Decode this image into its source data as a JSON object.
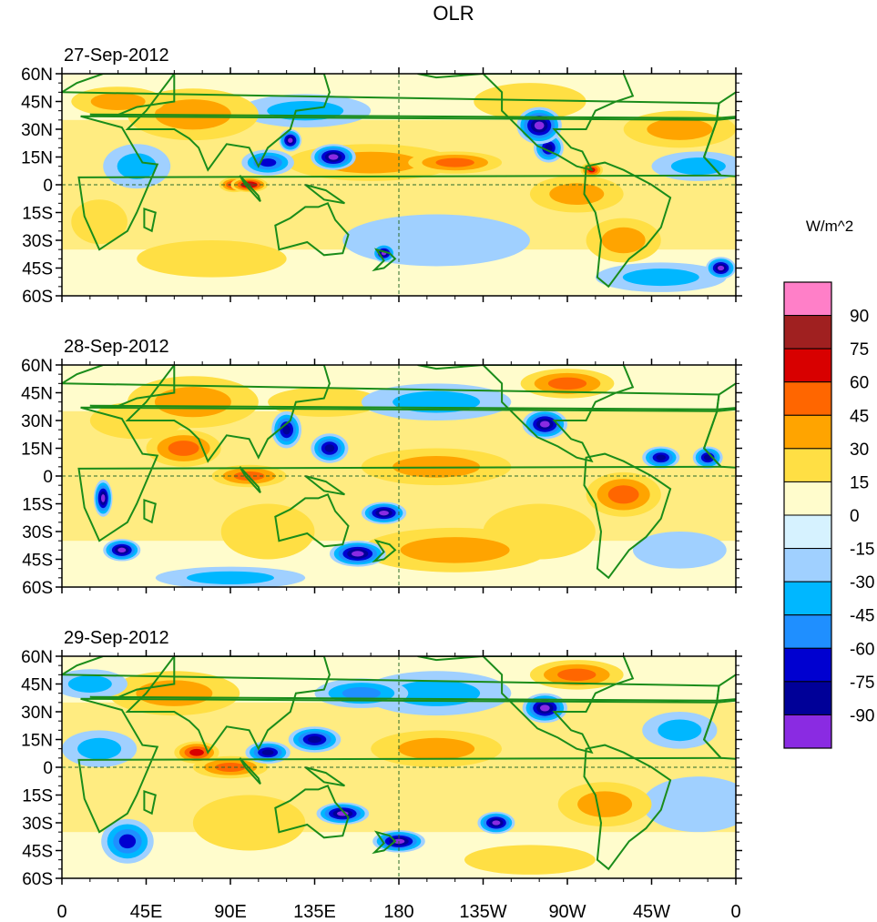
{
  "chart_data": {
    "type": "heatmap",
    "title": "OLR",
    "units_label": "W/m^2",
    "x_tick_labels": [
      "0",
      "45E",
      "90E",
      "135E",
      "180",
      "135W",
      "90W",
      "45W",
      "0"
    ],
    "x_ticks_deg": [
      0,
      45,
      90,
      135,
      180,
      225,
      270,
      315,
      360
    ],
    "y_tick_labels": [
      "60N",
      "45N",
      "30N",
      "15N",
      "0",
      "15S",
      "30S",
      "45S",
      "60S"
    ],
    "y_ticks_deg": [
      60,
      45,
      30,
      15,
      0,
      -15,
      -30,
      -45,
      -60
    ],
    "xlim": [
      0,
      360
    ],
    "ylim": [
      -60,
      60
    ],
    "colorbar": {
      "levels": [
        -90,
        -75,
        -60,
        -45,
        -30,
        -15,
        0,
        15,
        30,
        45,
        60,
        75,
        90
      ],
      "labels": [
        "90",
        "75",
        "60",
        "45",
        "30",
        "15",
        "0",
        "-15",
        "-30",
        "-45",
        "-60",
        "-75",
        "-90"
      ],
      "colors": [
        "#8a2be2",
        "#000098",
        "#0000d0",
        "#1f8fff",
        "#00b7ff",
        "#a0d0ff",
        "#d6f2ff",
        "#fffccc",
        "#ffdf44",
        "#ffa400",
        "#ff6600",
        "#d80000",
        "#a02020",
        "#ff7fc8"
      ]
    },
    "panels": [
      {
        "date": "27-Sep-2012",
        "features": [
          {
            "lon": 255,
            "lat": 32,
            "w": 12,
            "h": 10,
            "v": -90
          },
          {
            "lon": 260,
            "lat": 20,
            "w": 8,
            "h": 8,
            "v": -75
          },
          {
            "lon": 145,
            "lat": 15,
            "w": 12,
            "h": 7,
            "v": -90
          },
          {
            "lon": 122,
            "lat": 24,
            "w": 6,
            "h": 6,
            "v": -90
          },
          {
            "lon": 110,
            "lat": 12,
            "w": 14,
            "h": 7,
            "v": -60
          },
          {
            "lon": 100,
            "lat": 0,
            "w": 10,
            "h": 4,
            "v": 75
          },
          {
            "lon": 92,
            "lat": 0,
            "w": 8,
            "h": 4,
            "v": 60
          },
          {
            "lon": 283,
            "lat": 8,
            "w": 6,
            "h": 4,
            "v": 60
          },
          {
            "lon": 172,
            "lat": -37,
            "w": 6,
            "h": 5,
            "v": -90
          },
          {
            "lon": 352,
            "lat": -45,
            "w": 8,
            "h": 6,
            "v": -90
          },
          {
            "lon": 130,
            "lat": 40,
            "w": 35,
            "h": 9,
            "v": -30
          },
          {
            "lon": 70,
            "lat": 38,
            "w": 35,
            "h": 14,
            "v": 30
          },
          {
            "lon": 165,
            "lat": 12,
            "w": 45,
            "h": 10,
            "v": 30
          },
          {
            "lon": 210,
            "lat": 12,
            "w": 25,
            "h": 6,
            "v": 45
          },
          {
            "lon": 30,
            "lat": 45,
            "w": 25,
            "h": 8,
            "v": 30
          },
          {
            "lon": 40,
            "lat": 10,
            "w": 18,
            "h": 12,
            "v": -30
          },
          {
            "lon": 300,
            "lat": -30,
            "w": 20,
            "h": 12,
            "v": 30
          },
          {
            "lon": 200,
            "lat": -30,
            "w": 50,
            "h": 14,
            "v": -15
          },
          {
            "lon": 330,
            "lat": 30,
            "w": 30,
            "h": 10,
            "v": 30
          },
          {
            "lon": 340,
            "lat": 10,
            "w": 25,
            "h": 8,
            "v": -30
          },
          {
            "lon": 80,
            "lat": -40,
            "w": 40,
            "h": 10,
            "v": 15
          },
          {
            "lon": 275,
            "lat": -5,
            "w": 25,
            "h": 10,
            "v": 30
          },
          {
            "lon": 20,
            "lat": -20,
            "w": 15,
            "h": 12,
            "v": 15
          },
          {
            "lon": 250,
            "lat": 45,
            "w": 30,
            "h": 10,
            "v": 15
          },
          {
            "lon": 320,
            "lat": -50,
            "w": 35,
            "h": 8,
            "v": -30
          }
        ]
      },
      {
        "date": "28-Sep-2012",
        "features": [
          {
            "lon": 158,
            "lat": -42,
            "w": 15,
            "h": 7,
            "v": -90
          },
          {
            "lon": 172,
            "lat": -20,
            "w": 12,
            "h": 6,
            "v": -90
          },
          {
            "lon": 22,
            "lat": -12,
            "w": 5,
            "h": 10,
            "v": -90
          },
          {
            "lon": 32,
            "lat": -40,
            "w": 10,
            "h": 6,
            "v": -90
          },
          {
            "lon": 258,
            "lat": 28,
            "w": 12,
            "h": 8,
            "v": -90
          },
          {
            "lon": 143,
            "lat": 15,
            "w": 10,
            "h": 8,
            "v": -75
          },
          {
            "lon": 120,
            "lat": 25,
            "w": 8,
            "h": 10,
            "v": -75
          },
          {
            "lon": 320,
            "lat": 10,
            "w": 10,
            "h": 6,
            "v": -75
          },
          {
            "lon": 345,
            "lat": 10,
            "w": 8,
            "h": 6,
            "v": -75
          },
          {
            "lon": 100,
            "lat": 0,
            "w": 20,
            "h": 6,
            "v": 45
          },
          {
            "lon": 65,
            "lat": 15,
            "w": 20,
            "h": 10,
            "v": 45
          },
          {
            "lon": 200,
            "lat": 5,
            "w": 40,
            "h": 10,
            "v": 30
          },
          {
            "lon": 300,
            "lat": -10,
            "w": 20,
            "h": 12,
            "v": 45
          },
          {
            "lon": 210,
            "lat": -40,
            "w": 50,
            "h": 12,
            "v": 30
          },
          {
            "lon": 70,
            "lat": 40,
            "w": 35,
            "h": 14,
            "v": 30
          },
          {
            "lon": 270,
            "lat": 50,
            "w": 25,
            "h": 8,
            "v": 45
          },
          {
            "lon": 200,
            "lat": 40,
            "w": 40,
            "h": 10,
            "v": -30
          },
          {
            "lon": 110,
            "lat": -30,
            "w": 25,
            "h": 15,
            "v": 15
          },
          {
            "lon": 330,
            "lat": -40,
            "w": 25,
            "h": 10,
            "v": -15
          },
          {
            "lon": 40,
            "lat": 30,
            "w": 25,
            "h": 10,
            "v": 15
          },
          {
            "lon": 255,
            "lat": -30,
            "w": 30,
            "h": 15,
            "v": 15
          },
          {
            "lon": 140,
            "lat": 40,
            "w": 30,
            "h": 8,
            "v": 15
          },
          {
            "lon": 90,
            "lat": -55,
            "w": 40,
            "h": 6,
            "v": -30
          }
        ]
      },
      {
        "date": "29-Sep-2012",
        "features": [
          {
            "lon": 150,
            "lat": -25,
            "w": 14,
            "h": 6,
            "v": -90
          },
          {
            "lon": 180,
            "lat": -40,
            "w": 14,
            "h": 6,
            "v": -90
          },
          {
            "lon": 232,
            "lat": -30,
            "w": 10,
            "h": 6,
            "v": -90
          },
          {
            "lon": 258,
            "lat": 32,
            "w": 12,
            "h": 8,
            "v": -90
          },
          {
            "lon": 135,
            "lat": 15,
            "w": 14,
            "h": 7,
            "v": -75
          },
          {
            "lon": 110,
            "lat": 8,
            "w": 12,
            "h": 6,
            "v": -75
          },
          {
            "lon": 35,
            "lat": -40,
            "w": 14,
            "h": 12,
            "v": -60
          },
          {
            "lon": 90,
            "lat": 0,
            "w": 20,
            "h": 6,
            "v": 45
          },
          {
            "lon": 72,
            "lat": 8,
            "w": 12,
            "h": 6,
            "v": 60
          },
          {
            "lon": 200,
            "lat": 10,
            "w": 35,
            "h": 10,
            "v": 30
          },
          {
            "lon": 275,
            "lat": 50,
            "w": 25,
            "h": 8,
            "v": 45
          },
          {
            "lon": 290,
            "lat": -20,
            "w": 25,
            "h": 12,
            "v": 30
          },
          {
            "lon": 100,
            "lat": -30,
            "w": 30,
            "h": 15,
            "v": 15
          },
          {
            "lon": 60,
            "lat": 40,
            "w": 35,
            "h": 12,
            "v": 30
          },
          {
            "lon": 200,
            "lat": 40,
            "w": 40,
            "h": 12,
            "v": -30
          },
          {
            "lon": 340,
            "lat": -20,
            "w": 30,
            "h": 15,
            "v": -15
          },
          {
            "lon": 330,
            "lat": 20,
            "w": 20,
            "h": 10,
            "v": -30
          },
          {
            "lon": 20,
            "lat": 10,
            "w": 20,
            "h": 10,
            "v": -30
          },
          {
            "lon": 160,
            "lat": 40,
            "w": 25,
            "h": 8,
            "v": -45
          },
          {
            "lon": 250,
            "lat": -50,
            "w": 35,
            "h": 8,
            "v": 15
          },
          {
            "lon": 15,
            "lat": 45,
            "w": 20,
            "h": 8,
            "v": -30
          }
        ]
      }
    ]
  }
}
